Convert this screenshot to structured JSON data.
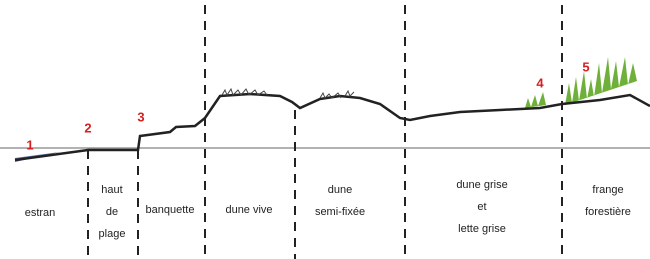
{
  "markers": [
    "1",
    "2",
    "3",
    "4",
    "5"
  ],
  "zones": [
    {
      "lines": [
        "estran"
      ]
    },
    {
      "lines": [
        "haut",
        "de",
        "plage"
      ]
    },
    {
      "lines": [
        "banquette"
      ]
    },
    {
      "lines": [
        "dune vive"
      ]
    },
    {
      "lines": [
        "dune",
        "semi-fixée"
      ]
    },
    {
      "lines": [
        "dune grise",
        "et",
        "lette grise"
      ]
    },
    {
      "lines": [
        "frange",
        "forestière"
      ]
    }
  ]
}
